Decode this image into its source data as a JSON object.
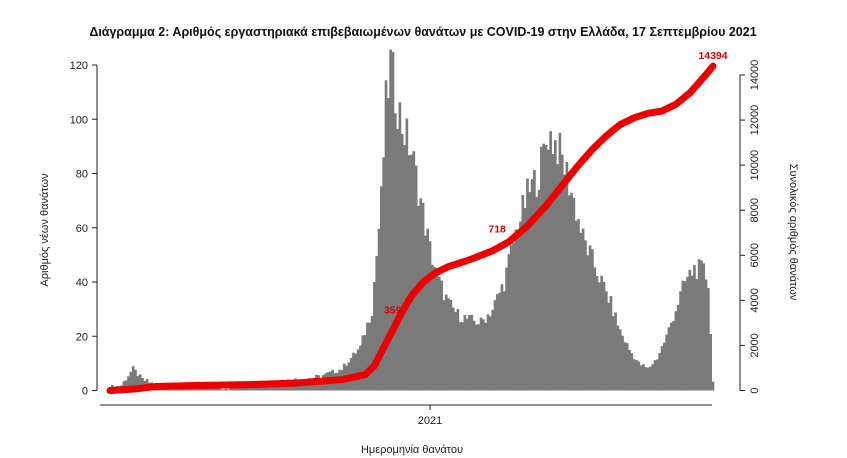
{
  "chart_data": {
    "type": "bar",
    "title": "Διάγραμμα 2: Αριθμός εργαστηριακά επιβεβαιωμένων θανάτων με COVID-19 στην Ελλάδα, 17 Σεπτεμβρίου 2021",
    "xlabel": "Ημερομηνία θανάτου",
    "ylabel": "Αριθμός νέων θανάτων",
    "y2label": "Συνολικός αριθμός θανάτων",
    "x_ticks": [
      "2021"
    ],
    "ylim": [
      0,
      125
    ],
    "y_ticks": [
      0,
      20,
      40,
      60,
      80,
      100,
      120
    ],
    "y2lim": [
      0,
      14600
    ],
    "y2_ticks": [
      0,
      2000,
      4000,
      6000,
      8000,
      10000,
      12000,
      14000
    ],
    "grid": false,
    "bar_color": "#7a7a7a",
    "line_color": "#ee0000",
    "daily_deaths_profile": [
      [
        0,
        1
      ],
      [
        5,
        2
      ],
      [
        10,
        8
      ],
      [
        14,
        4
      ],
      [
        20,
        2
      ],
      [
        30,
        1
      ],
      [
        40,
        2
      ],
      [
        50,
        1
      ],
      [
        60,
        2
      ],
      [
        70,
        3
      ],
      [
        80,
        4
      ],
      [
        90,
        5
      ],
      [
        100,
        8
      ],
      [
        108,
        16
      ],
      [
        113,
        30
      ],
      [
        117,
        70
      ],
      [
        119,
        105
      ],
      [
        121,
        120
      ],
      [
        123,
        110
      ],
      [
        126,
        98
      ],
      [
        130,
        88
      ],
      [
        134,
        70
      ],
      [
        138,
        52
      ],
      [
        142,
        40
      ],
      [
        146,
        32
      ],
      [
        150,
        28
      ],
      [
        155,
        26
      ],
      [
        160,
        25
      ],
      [
        165,
        30
      ],
      [
        170,
        40
      ],
      [
        175,
        58
      ],
      [
        180,
        72
      ],
      [
        185,
        80
      ],
      [
        189,
        95
      ],
      [
        193,
        90
      ],
      [
        197,
        80
      ],
      [
        200,
        70
      ],
      [
        204,
        56
      ],
      [
        208,
        48
      ],
      [
        212,
        40
      ],
      [
        216,
        32
      ],
      [
        220,
        22
      ],
      [
        224,
        15
      ],
      [
        228,
        10
      ],
      [
        232,
        8
      ],
      [
        236,
        12
      ],
      [
        240,
        20
      ],
      [
        244,
        30
      ],
      [
        248,
        40
      ],
      [
        252,
        45
      ],
      [
        256,
        44
      ],
      [
        258,
        40
      ],
      [
        260,
        3
      ]
    ],
    "cumulative_deaths_profile": [
      [
        0,
        0
      ],
      [
        10,
        60
      ],
      [
        20,
        180
      ],
      [
        40,
        230
      ],
      [
        60,
        260
      ],
      [
        80,
        330
      ],
      [
        100,
        480
      ],
      [
        110,
        700
      ],
      [
        114,
        1100
      ],
      [
        118,
        1900
      ],
      [
        122,
        2700
      ],
      [
        126,
        3500
      ],
      [
        130,
        4200
      ],
      [
        135,
        4800
      ],
      [
        140,
        5200
      ],
      [
        146,
        5500
      ],
      [
        155,
        5800
      ],
      [
        165,
        6200
      ],
      [
        172,
        6600
      ],
      [
        180,
        7300
      ],
      [
        188,
        8200
      ],
      [
        195,
        9100
      ],
      [
        202,
        10000
      ],
      [
        208,
        10700
      ],
      [
        214,
        11300
      ],
      [
        220,
        11800
      ],
      [
        226,
        12100
      ],
      [
        232,
        12300
      ],
      [
        238,
        12400
      ],
      [
        244,
        12700
      ],
      [
        250,
        13200
      ],
      [
        256,
        13900
      ],
      [
        260,
        14394
      ]
    ],
    "annotations": [
      {
        "label": "359",
        "x": 127,
        "y2": 3595
      },
      {
        "label": "718",
        "x": 172,
        "y2": 7190
      },
      {
        "label": "14394",
        "x": 260,
        "y2": 14394
      }
    ]
  }
}
